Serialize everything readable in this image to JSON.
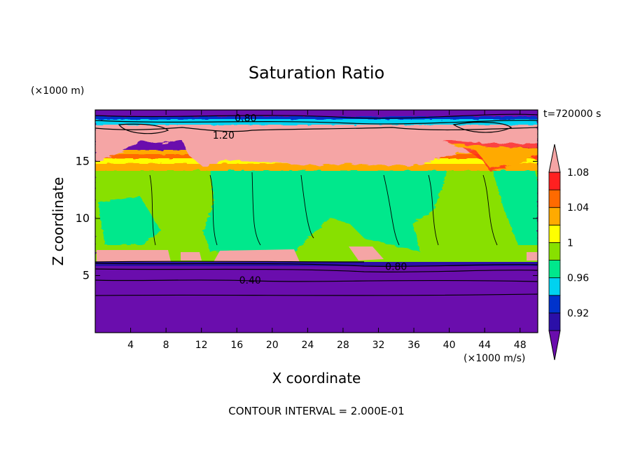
{
  "chart_data": {
    "type": "heatmap",
    "title": "Saturation Ratio",
    "xlabel": "X coordinate",
    "ylabel": "Z coordinate",
    "x_unit_label": "(×1000 m/s)",
    "y_unit_label": "(×1000 m)",
    "time_label": "t=720000 s",
    "footer": "CONTOUR INTERVAL = 2.000E-01",
    "xlim": [
      0,
      50
    ],
    "ylim": [
      0,
      19.5
    ],
    "x_ticks": [
      4,
      8,
      12,
      16,
      20,
      24,
      28,
      32,
      36,
      40,
      44,
      48
    ],
    "y_ticks": [
      5,
      10,
      15
    ],
    "contour_labels": [
      {
        "text": "0.80",
        "x": 17,
        "z": 18.8
      },
      {
        "text": "1.20",
        "x": 14.5,
        "z": 17.3
      },
      {
        "text": "0.80",
        "x": 34,
        "z": 5.8
      },
      {
        "text": "0.40",
        "x": 17.5,
        "z": 4.6
      }
    ],
    "colorbar": {
      "tick_labels": [
        "0.92",
        "0.96",
        "1",
        "1.04",
        "1.08"
      ],
      "colors": [
        "#6a0dad",
        "#2b0fa8",
        "#0033cc",
        "#00d2f0",
        "#00e88c",
        "#88e000",
        "#ffff00",
        "#ffaa00",
        "#ff6a00",
        "#ff2020",
        "#f5a5a5"
      ],
      "extend": "both"
    }
  }
}
